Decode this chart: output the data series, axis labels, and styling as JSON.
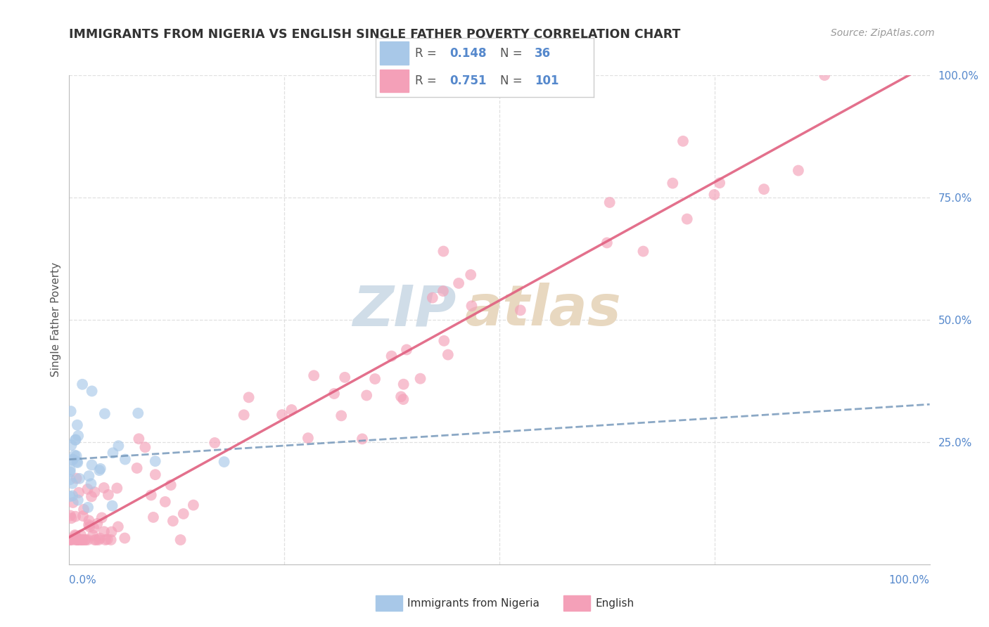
{
  "title": "IMMIGRANTS FROM NIGERIA VS ENGLISH SINGLE FATHER POVERTY CORRELATION CHART",
  "source": "Source: ZipAtlas.com",
  "ylabel": "Single Father Poverty",
  "legend_label_blue": "Immigrants from Nigeria",
  "legend_label_pink": "English",
  "r_blue": 0.148,
  "n_blue": 36,
  "r_pink": 0.751,
  "n_pink": 101,
  "color_blue": "#a8c8e8",
  "color_pink": "#f4a0b8",
  "line_blue_color": "#7799bb",
  "line_pink_color": "#e06080",
  "axis_label_color": "#5588cc",
  "title_color": "#333333",
  "source_color": "#999999",
  "watermark_zip_color": "#d0dde8",
  "watermark_atlas_color": "#e8d8c0",
  "grid_color": "#dddddd",
  "ylabel_color": "#555555",
  "legend_border_color": "#cccccc",
  "legend_bg_color": "#ffffff"
}
